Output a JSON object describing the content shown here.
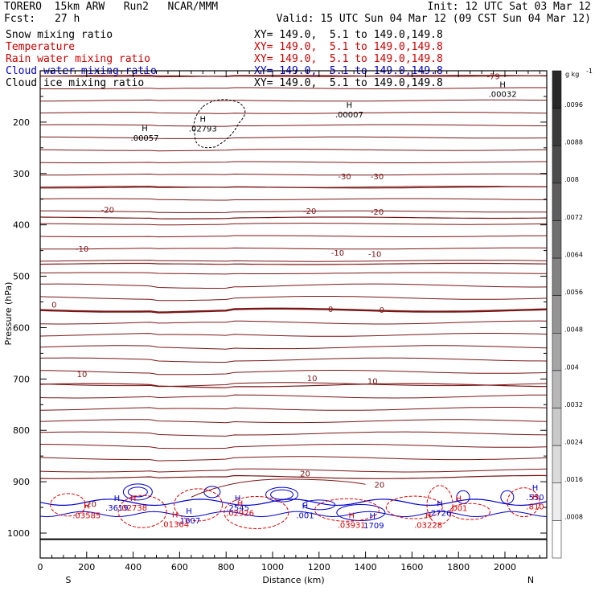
{
  "header": {
    "model_line": "TORERO  15km ARW   Run2   NCAR/MMM",
    "init": "Init: 12 UTC Sat 03 Mar 12",
    "fcst_label": "Fcst:",
    "fcst_value": "27 h",
    "valid": "Valid: 15 UTC Sun 04 Mar 12 (09 CST Sun 04 Mar 12)"
  },
  "fields": [
    {
      "name": "Snow mixing ratio",
      "xy": "XY= 149.0,  5.1 to 149.0,149.8",
      "color": "#000000",
      "xy_color": "#000000"
    },
    {
      "name": "Temperature",
      "xy": "XY= 149.0,  5.1 to 149.0,149.8",
      "color": "#cc0000",
      "xy_color": "#cc0000"
    },
    {
      "name": "Rain water mixing ratio",
      "xy": "XY= 149.0,  5.1 to 149.0,149.8",
      "color": "#cc0000",
      "xy_color": "#cc0000"
    },
    {
      "name": "Cloud water mixing ratio",
      "xy": "XY= 149.0,  5.1 to 149.0,149.8",
      "color": "#0000cc",
      "xy_color": "#0000cc"
    },
    {
      "name": "Cloud ice mixing ratio",
      "xy": "XY= 149.0,  5.1 to 149.0,149.8",
      "color": "#000000",
      "xy_color": "#000000"
    }
  ],
  "colors": {
    "temperature": "#7a1515",
    "rain": "#dd0000",
    "cloud_water": "#0000cc",
    "snow_ice": "#000000"
  },
  "chart_data": {
    "type": "cross-section contour",
    "xlabel": "Distance (km)",
    "ylabel": "Pressure (hPa)",
    "xlim": [
      0,
      2180
    ],
    "ylim": [
      1010,
      100
    ],
    "x_ticks": [
      0,
      200,
      400,
      600,
      800,
      1000,
      1200,
      1400,
      1600,
      1800,
      2000
    ],
    "y_ticks": [
      200,
      300,
      400,
      500,
      600,
      700,
      800,
      900,
      1000
    ],
    "left_end": "S",
    "right_end": "N",
    "temperature_contours_c": [
      {
        "value": -79,
        "p": 110
      },
      {
        "value": -30,
        "p": 327
      },
      {
        "value": -20,
        "p": 386
      },
      {
        "value": -10,
        "p": 476
      },
      {
        "value": 0,
        "p": 566
      },
      {
        "value": 10,
        "p": 712
      },
      {
        "value": 20,
        "p": 891
      }
    ],
    "temperature_labels": [
      {
        "text": "-79",
        "x": 1950,
        "p": 110
      },
      {
        "text": "-30",
        "x": 1310,
        "p": 305
      },
      {
        "text": "-30",
        "x": 1450,
        "p": 305
      },
      {
        "text": "-20",
        "x": 290,
        "p": 370
      },
      {
        "text": "-20",
        "x": 1160,
        "p": 372
      },
      {
        "text": "-20",
        "x": 1450,
        "p": 374
      },
      {
        "text": "-10",
        "x": 180,
        "p": 446
      },
      {
        "text": "-10",
        "x": 1280,
        "p": 454
      },
      {
        "text": "-10",
        "x": 1440,
        "p": 456
      },
      {
        "text": "0",
        "x": 60,
        "p": 555
      },
      {
        "text": "0",
        "x": 1250,
        "p": 563
      },
      {
        "text": "0",
        "x": 1470,
        "p": 565
      },
      {
        "text": "10",
        "x": 180,
        "p": 690
      },
      {
        "text": "10",
        "x": 1170,
        "p": 698
      },
      {
        "text": "10",
        "x": 1430,
        "p": 703
      },
      {
        "text": "20",
        "x": 1140,
        "p": 883
      },
      {
        "text": "20",
        "x": 1460,
        "p": 905
      },
      {
        "text": "20",
        "x": 220,
        "p": 943
      }
    ],
    "highs": [
      {
        "label": "H",
        "value": ".00057",
        "x": 450,
        "p": 225,
        "field": "snow"
      },
      {
        "label": "H",
        "value": ".02793",
        "x": 700,
        "p": 207,
        "field": "snow"
      },
      {
        "label": "H",
        "value": ".00007",
        "x": 1330,
        "p": 180,
        "field": "snow"
      },
      {
        "label": "H",
        "value": ".00032",
        "x": 1990,
        "p": 140,
        "field": "snow"
      },
      {
        "label": "H",
        "value": ".3619",
        "x": 330,
        "p": 945,
        "field": "cloud_water"
      },
      {
        "label": "H",
        "value": ".2545",
        "x": 850,
        "p": 945,
        "field": "cloud_water"
      },
      {
        "label": "H",
        "value": ".1607",
        "x": 640,
        "p": 970,
        "field": "cloud_water"
      },
      {
        "label": "H",
        "value": ".001",
        "x": 1140,
        "p": 960,
        "field": "cloud_water"
      },
      {
        "label": "H",
        "value": ".1709",
        "x": 1430,
        "p": 980,
        "field": "cloud_water"
      },
      {
        "label": "H",
        "value": ".2726",
        "x": 1720,
        "p": 955,
        "field": "cloud_water"
      },
      {
        "label": "H",
        "value": ".550",
        "x": 2130,
        "p": 925,
        "field": "cloud_water"
      },
      {
        "label": "H",
        "value": ".03585",
        "x": 200,
        "p": 960,
        "field": "rain"
      },
      {
        "label": "H",
        "value": ".02926",
        "x": 860,
        "p": 955,
        "field": "rain"
      },
      {
        "label": "H",
        "value": ".01364",
        "x": 580,
        "p": 977,
        "field": "rain"
      },
      {
        "label": "H",
        "value": ".03931",
        "x": 1340,
        "p": 979,
        "field": "rain"
      },
      {
        "label": "H",
        "value": ".03228",
        "x": 1670,
        "p": 979,
        "field": "rain"
      },
      {
        "label": "H",
        "value": ".001",
        "x": 1800,
        "p": 946,
        "field": "rain"
      },
      {
        "label": "H",
        "value": ".810",
        "x": 2130,
        "p": 943,
        "field": "rain"
      },
      {
        "label": "H",
        "value": ".02738",
        "x": 400,
        "p": 945,
        "field": "rain"
      }
    ],
    "colorbar": {
      "unit": "g kg",
      "unit_exp": "-1",
      "levels": [
        ".0096",
        ".0088",
        ".008",
        ".0072",
        ".0064",
        ".0056",
        ".0048",
        ".004",
        ".0032",
        ".0024",
        ".0016",
        ".0008"
      ]
    }
  }
}
